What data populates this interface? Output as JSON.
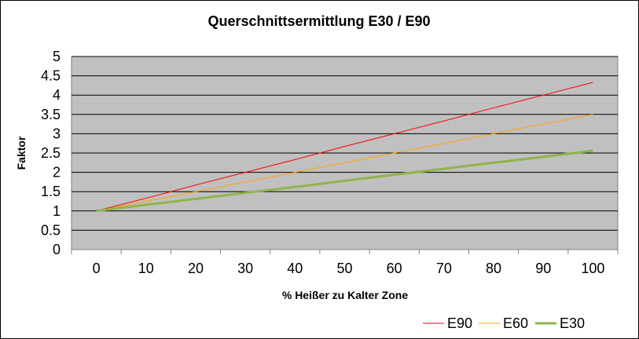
{
  "chart_data": {
    "type": "line",
    "title": "Querschnittsermittlung E30 / E90",
    "xlabel": "% Heißer zu Kalter Zone",
    "ylabel": "Faktor",
    "x": [
      0,
      10,
      20,
      30,
      40,
      50,
      60,
      70,
      80,
      90,
      100
    ],
    "xlim": [
      -5,
      105
    ],
    "ylim": [
      0,
      5
    ],
    "x_ticks": [
      "0",
      "10",
      "20",
      "30",
      "40",
      "50",
      "60",
      "70",
      "80",
      "90",
      "100"
    ],
    "y_ticks": [
      "0",
      "0.5",
      "1",
      "1.5",
      "2",
      "2.5",
      "3",
      "3.5",
      "4",
      "4.5",
      "5"
    ],
    "grid": true,
    "legend_position": "bottom-right",
    "plot_background": "#C0C0C0",
    "series": [
      {
        "name": "E90",
        "color": "#FF0000",
        "values": [
          1.0,
          1.33,
          1.67,
          2.0,
          2.33,
          2.67,
          3.0,
          3.33,
          3.67,
          4.0,
          4.33
        ]
      },
      {
        "name": "E60",
        "color": "#FFA500",
        "values": [
          1.0,
          1.25,
          1.5,
          1.75,
          2.0,
          2.25,
          2.5,
          2.75,
          3.0,
          3.25,
          3.5
        ]
      },
      {
        "name": "E30",
        "color": "#8DB54A",
        "values": [
          1.0,
          1.16,
          1.31,
          1.47,
          1.62,
          1.78,
          1.94,
          2.09,
          2.25,
          2.4,
          2.56
        ]
      }
    ]
  }
}
